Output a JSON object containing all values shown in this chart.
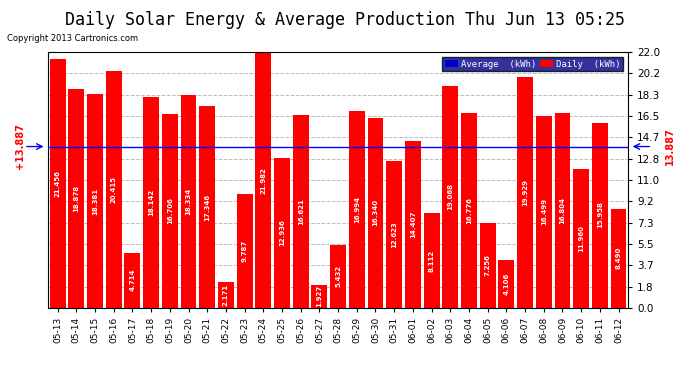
{
  "title": "Daily Solar Energy & Average Production Thu Jun 13 05:25",
  "copyright": "Copyright 2013 Cartronics.com",
  "categories": [
    "05-13",
    "05-14",
    "05-15",
    "05-16",
    "05-17",
    "05-18",
    "05-19",
    "05-20",
    "05-21",
    "05-22",
    "05-23",
    "05-24",
    "05-25",
    "05-26",
    "05-27",
    "05-28",
    "05-29",
    "05-30",
    "05-31",
    "06-01",
    "06-02",
    "06-03",
    "06-04",
    "06-05",
    "06-06",
    "06-07",
    "06-08",
    "06-09",
    "06-10",
    "06-11",
    "06-12"
  ],
  "values": [
    21.456,
    18.878,
    18.381,
    20.415,
    4.714,
    18.142,
    16.706,
    18.334,
    17.346,
    2.171,
    9.787,
    21.982,
    12.936,
    16.621,
    1.927,
    5.432,
    16.994,
    16.34,
    12.623,
    14.407,
    8.112,
    19.068,
    16.776,
    7.256,
    4.106,
    19.929,
    16.499,
    16.804,
    11.96,
    15.958,
    8.49
  ],
  "average": 13.887,
  "bar_color": "#FF0000",
  "average_line_color": "#0000FF",
  "ylim": [
    0.0,
    22.0
  ],
  "yticks": [
    0.0,
    1.8,
    3.7,
    5.5,
    7.3,
    9.2,
    11.0,
    12.8,
    14.7,
    16.5,
    18.3,
    20.2,
    22.0
  ],
  "grid_color": "#BBBBBB",
  "bg_color": "#FFFFFF",
  "plot_bg_color": "#FFFFFF",
  "title_fontsize": 12,
  "avg_label_left": "+13.887",
  "avg_label_right": "↓ 13.887"
}
